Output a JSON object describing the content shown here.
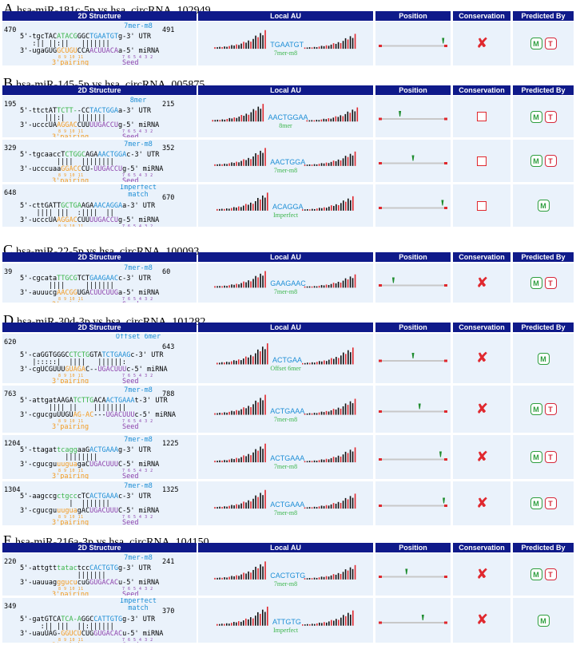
{
  "columns": {
    "structure": "2D Structure",
    "au": "Local AU",
    "position": "Position",
    "conservation": "Conservation",
    "predicted": "Predicted By"
  },
  "labels": {
    "utr": "UTR",
    "mirna": "miRNA",
    "seed": "Seed",
    "pairing": "3'pairing",
    "seedNums": "7 6 5 4 3 2",
    "pairNums": "8 9 10 11"
  },
  "badges": {
    "m": "M",
    "t": "T",
    "cross": "✘"
  },
  "colors": {
    "header": "#0f1a8a",
    "cell": "#eaf2fb",
    "blue": "#1f8fd6",
    "green": "#3ab54a",
    "orange": "#f39a1f",
    "purple": "#8e44ad",
    "red": "#e0282e"
  },
  "panels": [
    {
      "letter": "A",
      "title": "hsa-miR-181c-5p  vs  hsa_circRNA_102949",
      "rows": [
        {
          "start": "470",
          "end": "491",
          "site": "7mer-m8",
          "utr": "5'-tgcTACATACGGGCTGAATGTg-3'",
          "bars": "   :|| ||:||   |||||||",
          "mirna": "3'-ugaGUGGCUGUCCAACUUACAa-5'",
          "au_seq": "TGAATGT",
          "au_type": "7mer-m8",
          "pos": 0.96,
          "cons": "cross",
          "pred": [
            "M",
            "T"
          ]
        }
      ]
    },
    {
      "letter": "B",
      "title": "hsa-miR-145-5p  vs  hsa_circRNA_005875",
      "rows": [
        {
          "start": "195",
          "end": "215",
          "site": "8mer",
          "utr": "5'-ttctATTCTT--CCTACTGGAa-3'",
          "bars": "      |||:|   |||||||",
          "mirna": "3'-ucccUAAGGACCUUUUGACCUg-5'",
          "au_seq": "AACTGGAA",
          "au_type": "8mer",
          "pos": 0.3,
          "cons": "box",
          "pred": [
            "M",
            "T"
          ]
        },
        {
          "start": "329",
          "end": "352",
          "site": "7mer-m8",
          "utr": "5'-tgcaaccTCTGGCAGAAACTGGAc-3'",
          "bars": "         ||||  ||||||||",
          "mirna": "3'-ucccuaaGGACCCU-UUGACCUg-5'",
          "au_seq": "AACTGGA",
          "au_type": "7mer-m8",
          "pos": 0.5,
          "cons": "box",
          "pred": [
            "M",
            "T"
          ]
        },
        {
          "start": "648",
          "end": "670",
          "site": "Imperfect match",
          "utr": "5'-cttGATTGCTGAAGAAACAGGAa-3'",
          "bars": "    |||| |||  :||||  ||",
          "mirna": "3'-ucccUAAGGACCUUUUGACCUg-5'",
          "au_seq": "ACAGGA",
          "au_type": "Imperfect",
          "pos": 0.95,
          "cons": "box",
          "pred": [
            "M"
          ]
        }
      ]
    },
    {
      "letter": "C",
      "title": "hsa-miR-22-5p  vs  hsa_circRNA_100093",
      "rows": [
        {
          "start": "39",
          "end": "60",
          "site": "7mer-m8",
          "utr": "5'-cgcataTTGCGTCTGAAGAACc-3'",
          "bars": "       ||||     |||||||",
          "mirna": "3'-auuucgAACGGUGACUUCUUGa-5'",
          "au_seq": "GAAGAAC",
          "au_type": "7mer-m8",
          "pos": 0.2,
          "cons": "cross",
          "pred": [
            "M",
            "T"
          ]
        }
      ]
    },
    {
      "letter": "D",
      "title": "hsa-miR-30d-3p  vs  hsa_circRNA_101282",
      "rows": [
        {
          "start": "620",
          "end": "643",
          "site": "Offset 6mer",
          "utr": "5'-caGGTGGGCCTCTGGTATCTGAAGc-3'",
          "bars": "   |:::::|  ||||   ||||||:",
          "mirna": "3'-cgUCGUUUGUAGAC--UGACUUUc-5'",
          "au_seq": "ACTGAA",
          "au_type": "Offset 6mer",
          "pos": 0.5,
          "cons": "cross",
          "pred": [
            "M"
          ]
        },
        {
          "start": "763",
          "end": "788",
          "site": "7mer-m8",
          "utr": "5'-attgatAAGATCTTGACAACTGAAAt-3'",
          "bars": "       |||| ||    ||||||||",
          "mirna": "3'-cgucguUUGUAG-AC---UGACUUUc-5'",
          "au_seq": "ACTGAAA",
          "au_type": "7mer-m8",
          "pos": 0.6,
          "cons": "cross",
          "pred": [
            "M",
            "T"
          ]
        },
        {
          "start": "1204",
          "end": "1225",
          "site": "7mer-m8",
          "utr": "5'-ttagattcaggaaGACTGAAAg-3'",
          "bars": "           ||||||||",
          "mirna": "3'-cgucguuuguagaCUGACUUUC-5'",
          "au_seq": "ACTGAAA",
          "au_type": "7mer-m8",
          "pos": 0.92,
          "cons": "cross",
          "pred": [
            "M",
            "T"
          ]
        },
        {
          "start": "1304",
          "end": "1325",
          "site": "7mer-m8",
          "utr": "5'-aagccgctgcccTCACTGAAAc-3'",
          "bars": "            |  |||||||",
          "mirna": "3'-cgucguuuguagACUGACUUUC-5'",
          "au_seq": "ACTGAAA",
          "au_type": "7mer-m8",
          "pos": 0.97,
          "cons": "cross",
          "pred": [
            "M",
            "T"
          ]
        }
      ]
    },
    {
      "letter": "E",
      "title": "hsa-miR-216a-3p  vs  hsa_circRNA_104150",
      "rows": [
        {
          "start": "220",
          "end": "241",
          "site": "7mer-m8",
          "utr": "5'-attgtttatactccCACTGTGg-3'",
          "bars": "              |||||||",
          "mirna": "3'-uauuagggucucuGGUGACACu-5'",
          "au_seq": "CACTGTG",
          "au_type": "7mer-m8",
          "pos": 0.4,
          "cons": "cross",
          "pred": [
            "M",
            "T"
          ]
        },
        {
          "start": "349",
          "end": "370",
          "site": "Imperfect match",
          "utr": "5'-gatGTCATCA-AGGCCATTGTGg-3'",
          "bars": "     :|| |||  ||:||||||",
          "mirna": "3'-uauUAG-GGUCUCUGGUGACACu-5'",
          "au_seq": "ATTGTG",
          "au_type": "Imperfect",
          "pos": 0.65,
          "cons": "cross",
          "pred": [
            "M"
          ]
        }
      ]
    }
  ]
}
